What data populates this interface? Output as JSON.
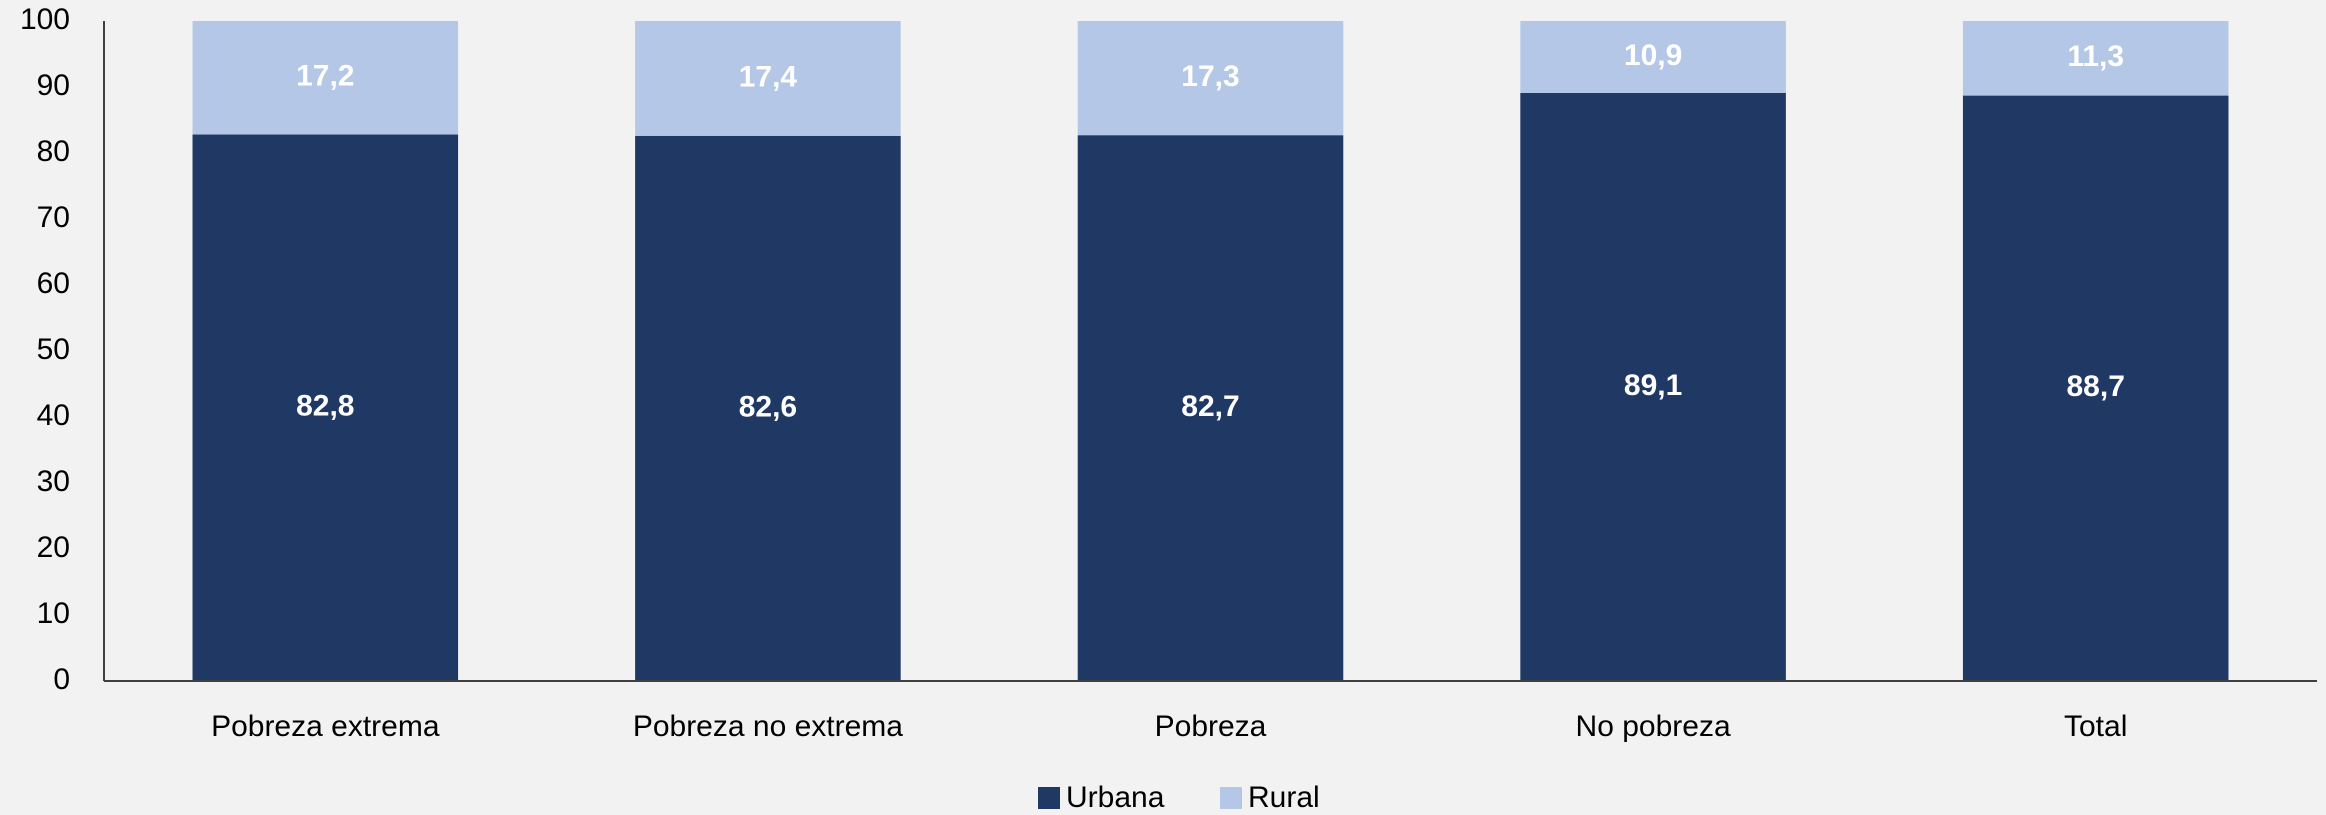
{
  "chart_data": {
    "type": "stacked_bar",
    "categories": [
      "Pobreza extrema",
      "Pobreza no extrema",
      "Pobreza",
      "No pobreza",
      "Total"
    ],
    "series": [
      {
        "name": "Urbana",
        "color": "#1f3864",
        "values": [
          82.8,
          82.6,
          82.7,
          89.1,
          88.7
        ],
        "value_labels": [
          "82,8",
          "82,6",
          "82,7",
          "89,1",
          "88,7"
        ]
      },
      {
        "name": "Rural",
        "color": "#b4c7e7",
        "values": [
          17.2,
          17.4,
          17.3,
          10.9,
          11.3
        ],
        "value_labels": [
          "17,2",
          "17,4",
          "17,3",
          "10,9",
          "11,3"
        ]
      }
    ],
    "ylim": [
      0,
      100
    ],
    "yticks": [
      0,
      10,
      20,
      30,
      40,
      50,
      60,
      70,
      80,
      90,
      100
    ],
    "grid": false
  }
}
